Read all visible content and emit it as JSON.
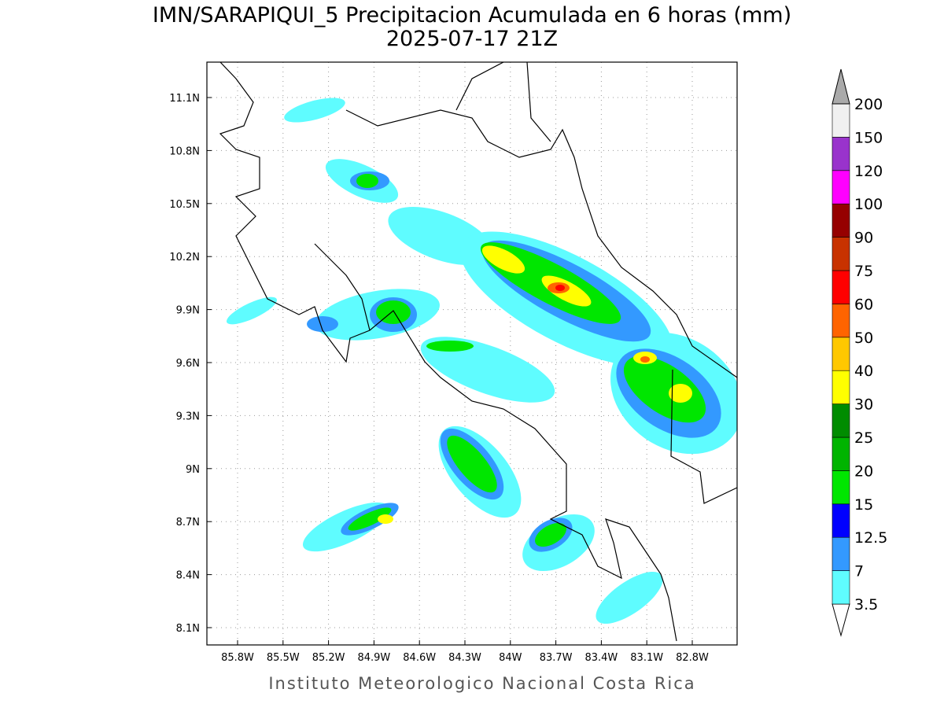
{
  "header": {
    "title": "IMN/SARAPIQUI_5 Precipitacion Acumulada en 6 horas (mm)",
    "subtitle": "2025-07-17 21Z"
  },
  "map": {
    "lat_labels": [
      "11.1N",
      "10.8N",
      "10.5N",
      "10.2N",
      "9.9N",
      "9.6N",
      "9.3N",
      "9N",
      "8.7N",
      "8.4N",
      "8.1N"
    ],
    "lon_labels": [
      "85.8W",
      "85.5W",
      "85.2W",
      "84.9W",
      "84.6W",
      "84.3W",
      "84W",
      "83.7W",
      "83.4W",
      "83.1W",
      "82.8W"
    ]
  },
  "colorbar": {
    "levels": [
      3.5,
      7,
      12.5,
      15,
      20,
      25,
      30,
      40,
      50,
      60,
      75,
      90,
      100,
      120,
      150,
      200
    ],
    "colors": [
      "#5ffcff",
      "#3399ff",
      "#0000ff",
      "#00e600",
      "#00b400",
      "#008c00",
      "#ffff00",
      "#ffc800",
      "#ff6400",
      "#ff0000",
      "#c83200",
      "#960000",
      "#ff00ff",
      "#9933cc",
      "#f0f0f0"
    ]
  },
  "footer": "Instituto Meteorologico Nacional Costa Rica"
}
